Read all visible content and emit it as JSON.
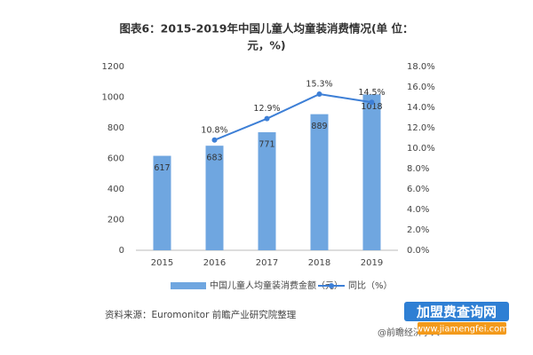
{
  "chart_data": {
    "type": "bar-line",
    "title": [
      "图表6：2015-2019年中国儿童人均童装消费情况(单 位：",
      "元，%)"
    ],
    "categories": [
      "2015",
      "2016",
      "2017",
      "2018",
      "2019"
    ],
    "series": [
      {
        "name": "中国儿童人均童装消费金额（元）",
        "type": "bar",
        "color": "#6fa6e0",
        "values": [
          617,
          683,
          771,
          889,
          1018
        ]
      },
      {
        "name": "同比（%）",
        "type": "line",
        "axis": "y2",
        "color": "#3d7fd6",
        "values": [
          null,
          10.8,
          12.9,
          15.3,
          14.5
        ],
        "value_labels": [
          null,
          "10.8%",
          "12.9%",
          "15.3%",
          "14.5%"
        ]
      }
    ],
    "ylim": [
      0,
      1200
    ],
    "yticks": [
      0,
      200,
      400,
      600,
      800,
      1000,
      1200
    ],
    "y2lim": [
      0,
      18
    ],
    "y2ticks": [
      {
        "value": 0,
        "label": "0.0%"
      },
      {
        "value": 2,
        "label": "2.0%"
      },
      {
        "value": 4,
        "label": "4.0%"
      },
      {
        "value": 6,
        "label": "6.0%"
      },
      {
        "value": 8,
        "label": "8.0%"
      },
      {
        "value": 10,
        "label": "10.0%"
      },
      {
        "value": 12,
        "label": "12.0%"
      },
      {
        "value": 14,
        "label": "14.0%"
      },
      {
        "value": 16,
        "label": "16.0%"
      },
      {
        "value": 18,
        "label": "18.0%"
      }
    ],
    "grid": false,
    "source": "资料来源：Euromonitor 前瞻产业研究院整理",
    "credit": "@前瞻经济学人",
    "logo": {
      "name": "加盟费查询网",
      "url": "www.jiamengfei.com"
    }
  }
}
